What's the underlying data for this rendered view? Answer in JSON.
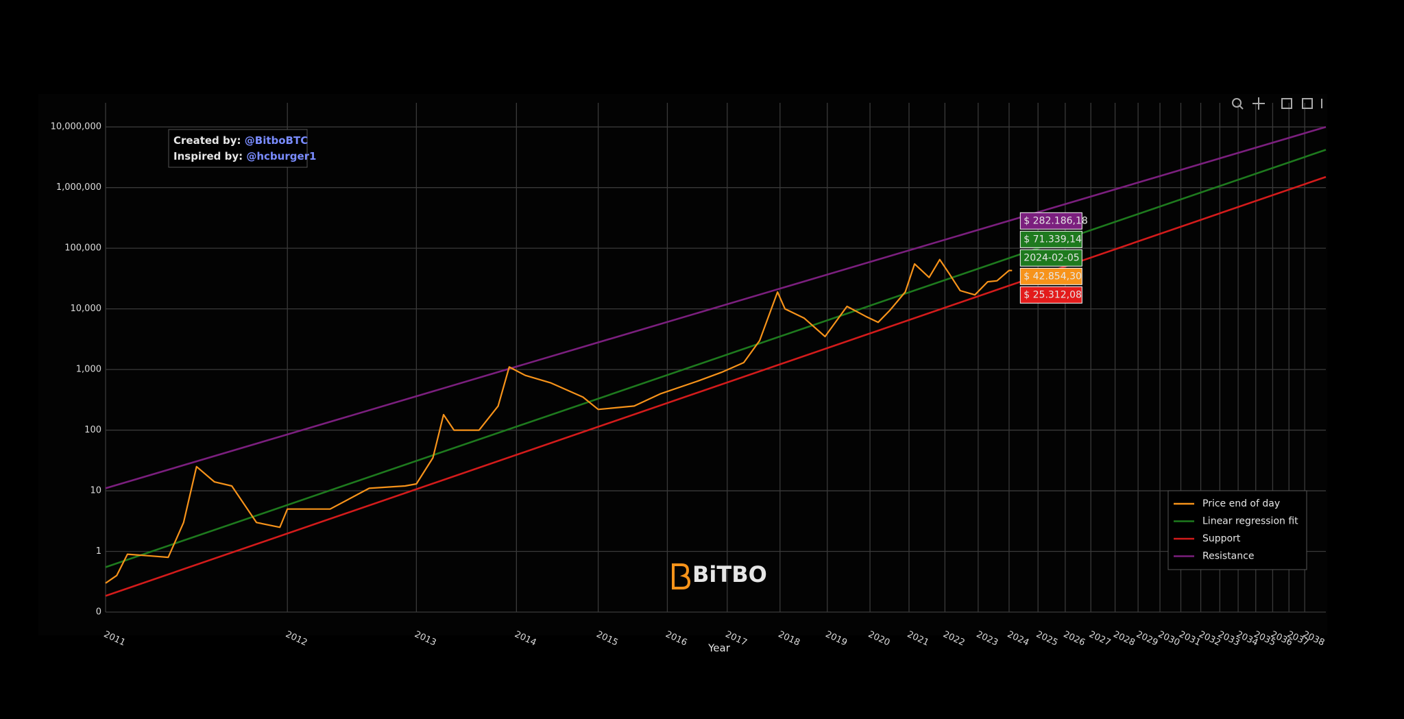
{
  "chart_data": {
    "type": "line",
    "x_label": "Year",
    "watermark": "BiTBO",
    "annotation": {
      "created_label": "Created by:",
      "created_handle": "@BitboBTC",
      "inspired_label": "Inspired by:",
      "inspired_handle": "@hcburger1"
    },
    "xscale": "log",
    "yscale": "log",
    "grid": true,
    "legend": "lower right",
    "xlim": [
      2011,
      2039.4
    ],
    "ylim": [
      0.1,
      25000000
    ],
    "xticks": [
      2011,
      2012,
      2013,
      2014,
      2015,
      2016,
      2017,
      2018,
      2019,
      2020,
      2021,
      2022,
      2023,
      2024,
      2025,
      2026,
      2027,
      2028,
      2029,
      2030,
      2031,
      2032,
      2033,
      2034,
      2035,
      2036,
      2037,
      2038
    ],
    "yticks": [
      {
        "value": 0.1,
        "label": "0"
      },
      1,
      10,
      100,
      {
        "value": 1000,
        "label": "1,000"
      },
      {
        "value": 10000,
        "label": "10,000"
      },
      {
        "value": 100000,
        "label": "100,000"
      },
      {
        "value": 1000000,
        "label": "1,000,000"
      },
      {
        "value": 10000000,
        "label": "10,000,000"
      }
    ],
    "series": [
      {
        "name": "Price end of day",
        "color": "#f7931a",
        "x": [
          2011.0,
          2011.05,
          2011.1,
          2011.2,
          2011.3,
          2011.38,
          2011.45,
          2011.55,
          2011.65,
          2011.8,
          2011.95,
          2012.0,
          2012.3,
          2012.6,
          2012.9,
          2013.0,
          2013.15,
          2013.25,
          2013.35,
          2013.6,
          2013.8,
          2013.92,
          2014.1,
          2014.4,
          2014.8,
          2015.0,
          2015.5,
          2015.9,
          2016.5,
          2016.9,
          2017.3,
          2017.6,
          2017.95,
          2018.1,
          2018.5,
          2018.95,
          2019.45,
          2019.9,
          2020.2,
          2020.5,
          2020.9,
          2021.15,
          2021.55,
          2021.85,
          2022.1,
          2022.45,
          2022.9,
          2023.3,
          2023.6,
          2024.0,
          2024.1
        ],
        "values": [
          0.3,
          0.4,
          0.9,
          0.85,
          0.8,
          3,
          25,
          14,
          12,
          3,
          2.5,
          5,
          5,
          11,
          12,
          13,
          35,
          180,
          100,
          100,
          250,
          1100,
          800,
          600,
          350,
          220,
          250,
          400,
          650,
          900,
          1300,
          3000,
          19000,
          10000,
          7000,
          3500,
          11000,
          7500,
          6000,
          9500,
          19000,
          55000,
          33000,
          65000,
          40000,
          20000,
          17000,
          28000,
          29000,
          43000,
          42854.3
        ]
      },
      {
        "name": "Linear regression fit",
        "color": "#1e7a1e",
        "x": [
          2011,
          2039.4
        ],
        "values": [
          0.55,
          4200000
        ]
      },
      {
        "name": "Support",
        "color": "#d31b1b",
        "x": [
          2011,
          2039.4
        ],
        "values": [
          0.185,
          1500000
        ]
      },
      {
        "name": "Resistance",
        "color": "#7b1f7e",
        "x": [
          2011,
          2039.4
        ],
        "values": [
          11,
          10000000
        ]
      }
    ],
    "tooltip": {
      "date": "2024-02-05",
      "values": [
        282186.18,
        71339.14,
        42854.3,
        25312.08
      ],
      "value_labels": [
        "$ 282.186,18",
        "$ 71.339,14",
        "$ 42.854,30",
        "$ 25.312,08"
      ],
      "colors": [
        "#7b1f7e",
        "#1e7a1e",
        "#f7931a",
        "#e31b1b"
      ]
    }
  }
}
